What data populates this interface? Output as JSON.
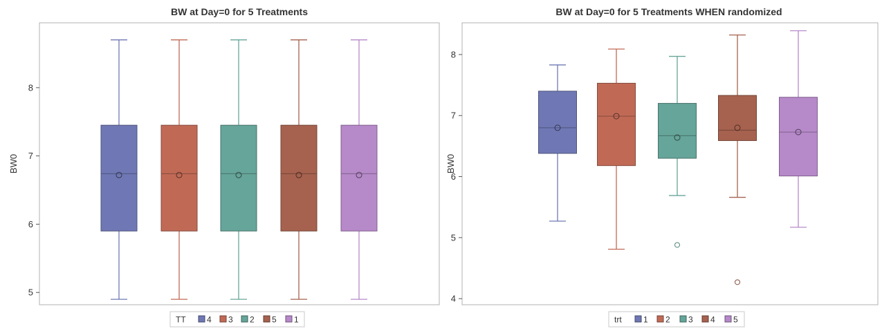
{
  "chart_data": [
    {
      "type": "box",
      "title": "BW at Day=0 for 5 Treatments",
      "ylabel": "BW0",
      "xlabel": "",
      "ylim": [
        4.82,
        8.95
      ],
      "yticks": [
        5,
        6,
        7,
        8
      ],
      "grid": false,
      "legend": {
        "title": "TT",
        "placement": "bottom-center",
        "entries": [
          "4",
          "3",
          "2",
          "5",
          "1"
        ]
      },
      "series": [
        {
          "name": "4",
          "color": "#6f78b4",
          "min": 4.9,
          "q1": 5.9,
          "median": 6.74,
          "mean": 6.72,
          "q3": 7.45,
          "max": 8.7,
          "outliers": []
        },
        {
          "name": "3",
          "color": "#c06a56",
          "min": 4.9,
          "q1": 5.9,
          "median": 6.74,
          "mean": 6.72,
          "q3": 7.45,
          "max": 8.7,
          "outliers": []
        },
        {
          "name": "2",
          "color": "#66a599",
          "min": 4.9,
          "q1": 5.9,
          "median": 6.74,
          "mean": 6.72,
          "q3": 7.45,
          "max": 8.7,
          "outliers": []
        },
        {
          "name": "5",
          "color": "#a6624f",
          "min": 4.9,
          "q1": 5.9,
          "median": 6.74,
          "mean": 6.72,
          "q3": 7.45,
          "max": 8.7,
          "outliers": []
        },
        {
          "name": "1",
          "color": "#b689c9",
          "min": 4.9,
          "q1": 5.9,
          "median": 6.74,
          "mean": 6.72,
          "q3": 7.45,
          "max": 8.7,
          "outliers": []
        }
      ]
    },
    {
      "type": "box",
      "title": "BW at Day=0 for 5 Treatments WHEN randomized",
      "ylabel": "BW0",
      "xlabel": "",
      "ylim": [
        3.9,
        8.52
      ],
      "yticks": [
        4,
        5,
        6,
        7,
        8
      ],
      "grid": false,
      "legend": {
        "title": "trt",
        "placement": "bottom-center",
        "entries": [
          "1",
          "2",
          "3",
          "4",
          "5"
        ]
      },
      "series": [
        {
          "name": "1",
          "color": "#6f78b4",
          "min": 5.27,
          "q1": 6.38,
          "median": 6.8,
          "mean": 6.8,
          "q3": 7.4,
          "max": 7.83,
          "outliers": []
        },
        {
          "name": "2",
          "color": "#c06a56",
          "min": 4.81,
          "q1": 6.18,
          "median": 6.99,
          "mean": 6.99,
          "q3": 7.53,
          "max": 8.09,
          "outliers": []
        },
        {
          "name": "3",
          "color": "#66a599",
          "min": 5.69,
          "q1": 6.3,
          "median": 6.67,
          "mean": 6.64,
          "q3": 7.2,
          "max": 7.97,
          "outliers": [
            4.88
          ]
        },
        {
          "name": "4",
          "color": "#a6624f",
          "min": 5.66,
          "q1": 6.59,
          "median": 6.76,
          "mean": 6.8,
          "q3": 7.33,
          "max": 8.32,
          "outliers": [
            4.27
          ]
        },
        {
          "name": "5",
          "color": "#b689c9",
          "min": 5.17,
          "q1": 6.01,
          "median": 6.73,
          "mean": 6.73,
          "q3": 7.3,
          "max": 8.39,
          "outliers": []
        }
      ]
    }
  ]
}
